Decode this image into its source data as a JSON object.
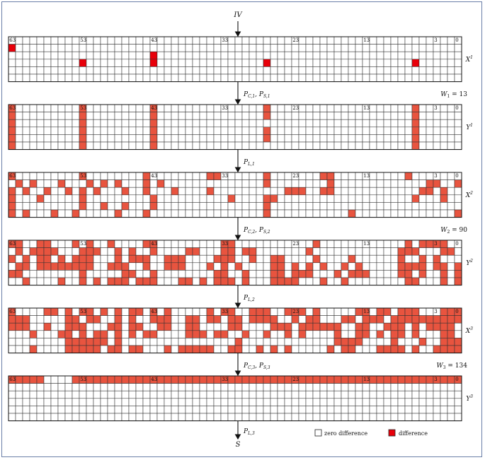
{
  "top_label": "IV",
  "bottom_label": "S",
  "legend": {
    "zero_label": "zero difference",
    "diff_label": "difference",
    "diff_color": "#e8543f",
    "highlight_color": "#e8000a"
  },
  "bit_labels": [
    "63",
    "53",
    "43",
    "33",
    "23",
    "13",
    "3",
    "0"
  ],
  "states": [
    {
      "name": "X",
      "sup": "1",
      "highlight": true,
      "rows": [
        "0000000000000000000000000000000000000000000000000000000000000000",
        "1000000000000000000000000000000000000000000000000000000000000000",
        "0000000000000000000010000000000000000000000000000000000000000000",
        "0000000000100000000010000000000000001000000000000000000001000000",
        "0000000000000000000000000000000000000000000000000000000000000000",
        "0000000000000000000000000000000000000000000000000000000000000000"
      ]
    },
    {
      "name": "Y",
      "sup": "1",
      "highlight": false,
      "rows": [
        "1000000000100000000010000000000000001000000000000000000001000000",
        "1000000000100000000010000000000000001000000000000000000001000000",
        "1000000000100000000010000000000000000000000000000000000001000000",
        "1000000000100000000010000000000000001000000000000000000001000000",
        "1000000000100000000010000000000000001000000000000000000001000000",
        "1000000000100000000010000000000000000000000000000000000001000000"
      ]
    },
    {
      "name": "X",
      "sup": "2",
      "highlight": false,
      "rows": [
        "1000000000100000000100000000110000001000000011000000000010000000100",
        "0101000100010101000101000000000000001000000001000000000000011001000",
        "1010010010101000100100010000100000000001110011000000000000110100000",
        "1000100000100000000010000000000100001100000000000000000001000100000",
        "1000000000100100100010000000000000001000000000000000000000000000100",
        "1010001001000001000100000000000000001000000000001000000000000001000"
      ]
    },
    {
      "name": "Y",
      "sup": "2",
      "highlight": false,
      "rows": [
        "1100110001010010000110000000001100000000000100000000000010111100000",
        "0101111000111001010010000110001101100000001000000000000111000110000",
        "1010110101110001011100111000011100100110000100001000000100101000110",
        "0110111111110011100100111000101010000110101010010100000111101101000",
        "1100000000100000110010000000011001000110111000101110000110100101000",
        "0010000100101011101110001101011101000111100010010000000011000101000"
      ]
    },
    {
      "name": "X",
      "sup": "3",
      "highlight": false,
      "rows": [
        "1000011010110101011010100000101100111001110100000110110111000111001",
        "1110000011011001010011100110110110111100101100011011101111111111001",
        "1110010011100011011001100110000110000111011111100110011101011110001",
        "0001000110101101010110000111011001001001010000100110101101000110000",
        "0000000011111101000000000000000010000000000000111100001000100111000",
        "0001000011111011011000101111100110010101000001011000111101001111000"
      ]
    },
    {
      "name": "Y",
      "sup": "3",
      "highlight": false,
      "rows": [
        "1111100001111111111111111111111111111111111111111111111111111111111",
        "0000000000000000000000000000000000000000000000000000000000000000",
        "0000000000000000000000000000000000000000000000000000000000000000",
        "0000000000000000000000000000000000000000000000000000000000000000",
        "0000000000000000000000000000000000000000000000000000000000000000",
        "0000000000000000000000000000000000000000000000000000000000000000"
      ]
    }
  ],
  "transitions": [
    {
      "a_base": "P",
      "a_sub": "C,1",
      "b_base": "P",
      "b_sub": "S,1",
      "weight_base": "W",
      "weight_sub": "1",
      "weight_value": "13"
    },
    {
      "a_base": "P",
      "a_sub": "L,1"
    },
    {
      "a_base": "P",
      "a_sub": "C,2",
      "b_base": "P",
      "b_sub": "S,2",
      "weight_base": "W",
      "weight_sub": "2",
      "weight_value": "90"
    },
    {
      "a_base": "P",
      "a_sub": "L,2"
    },
    {
      "a_base": "P",
      "a_sub": "C,3",
      "b_base": "P",
      "b_sub": "S,3",
      "weight_base": "W",
      "weight_sub": "3",
      "weight_value": "134"
    },
    {
      "a_base": "P",
      "a_sub": "L,3"
    }
  ]
}
